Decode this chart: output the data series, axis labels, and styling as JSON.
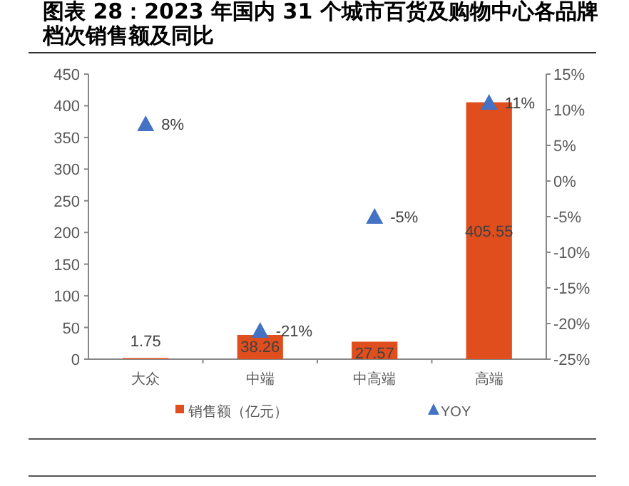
{
  "chart_data": {
    "type": "bar",
    "title": "图表 28：2023 年国内 31 个城市百货及购物中心各品牌档次销售额及同比",
    "categories": [
      "大众",
      "中端",
      "中高端",
      "高端"
    ],
    "series": [
      {
        "name": "销售额（亿元）",
        "color": "#e04e1e",
        "values": [
          1.75,
          38.26,
          27.57,
          405.55
        ]
      },
      {
        "name": "YOY",
        "type": "scatter",
        "axis": "y2",
        "color": "#4472c4",
        "marker": "triangle",
        "values": [
          8,
          -21,
          -5,
          11
        ],
        "value_labels": [
          "8%",
          "-21%",
          "-5%",
          "11%"
        ]
      }
    ],
    "ylim": [
      0,
      450
    ],
    "yticks": [
      0,
      50,
      100,
      150,
      200,
      250,
      300,
      350,
      400,
      450
    ],
    "y2lim": [
      -25,
      15
    ],
    "y2ticks": [
      {
        "value": -25,
        "label": "-25%"
      },
      {
        "value": -20,
        "label": "-20%"
      },
      {
        "value": -15,
        "label": "-15%"
      },
      {
        "value": -10,
        "label": "-10%"
      },
      {
        "value": -5,
        "label": "-5%"
      },
      {
        "value": 0,
        "label": "0%"
      },
      {
        "value": 5,
        "label": "5%"
      },
      {
        "value": 10,
        "label": "10%"
      },
      {
        "value": 15,
        "label": "15%"
      }
    ],
    "data_labels": true,
    "legend": "bottom",
    "grid": false
  }
}
